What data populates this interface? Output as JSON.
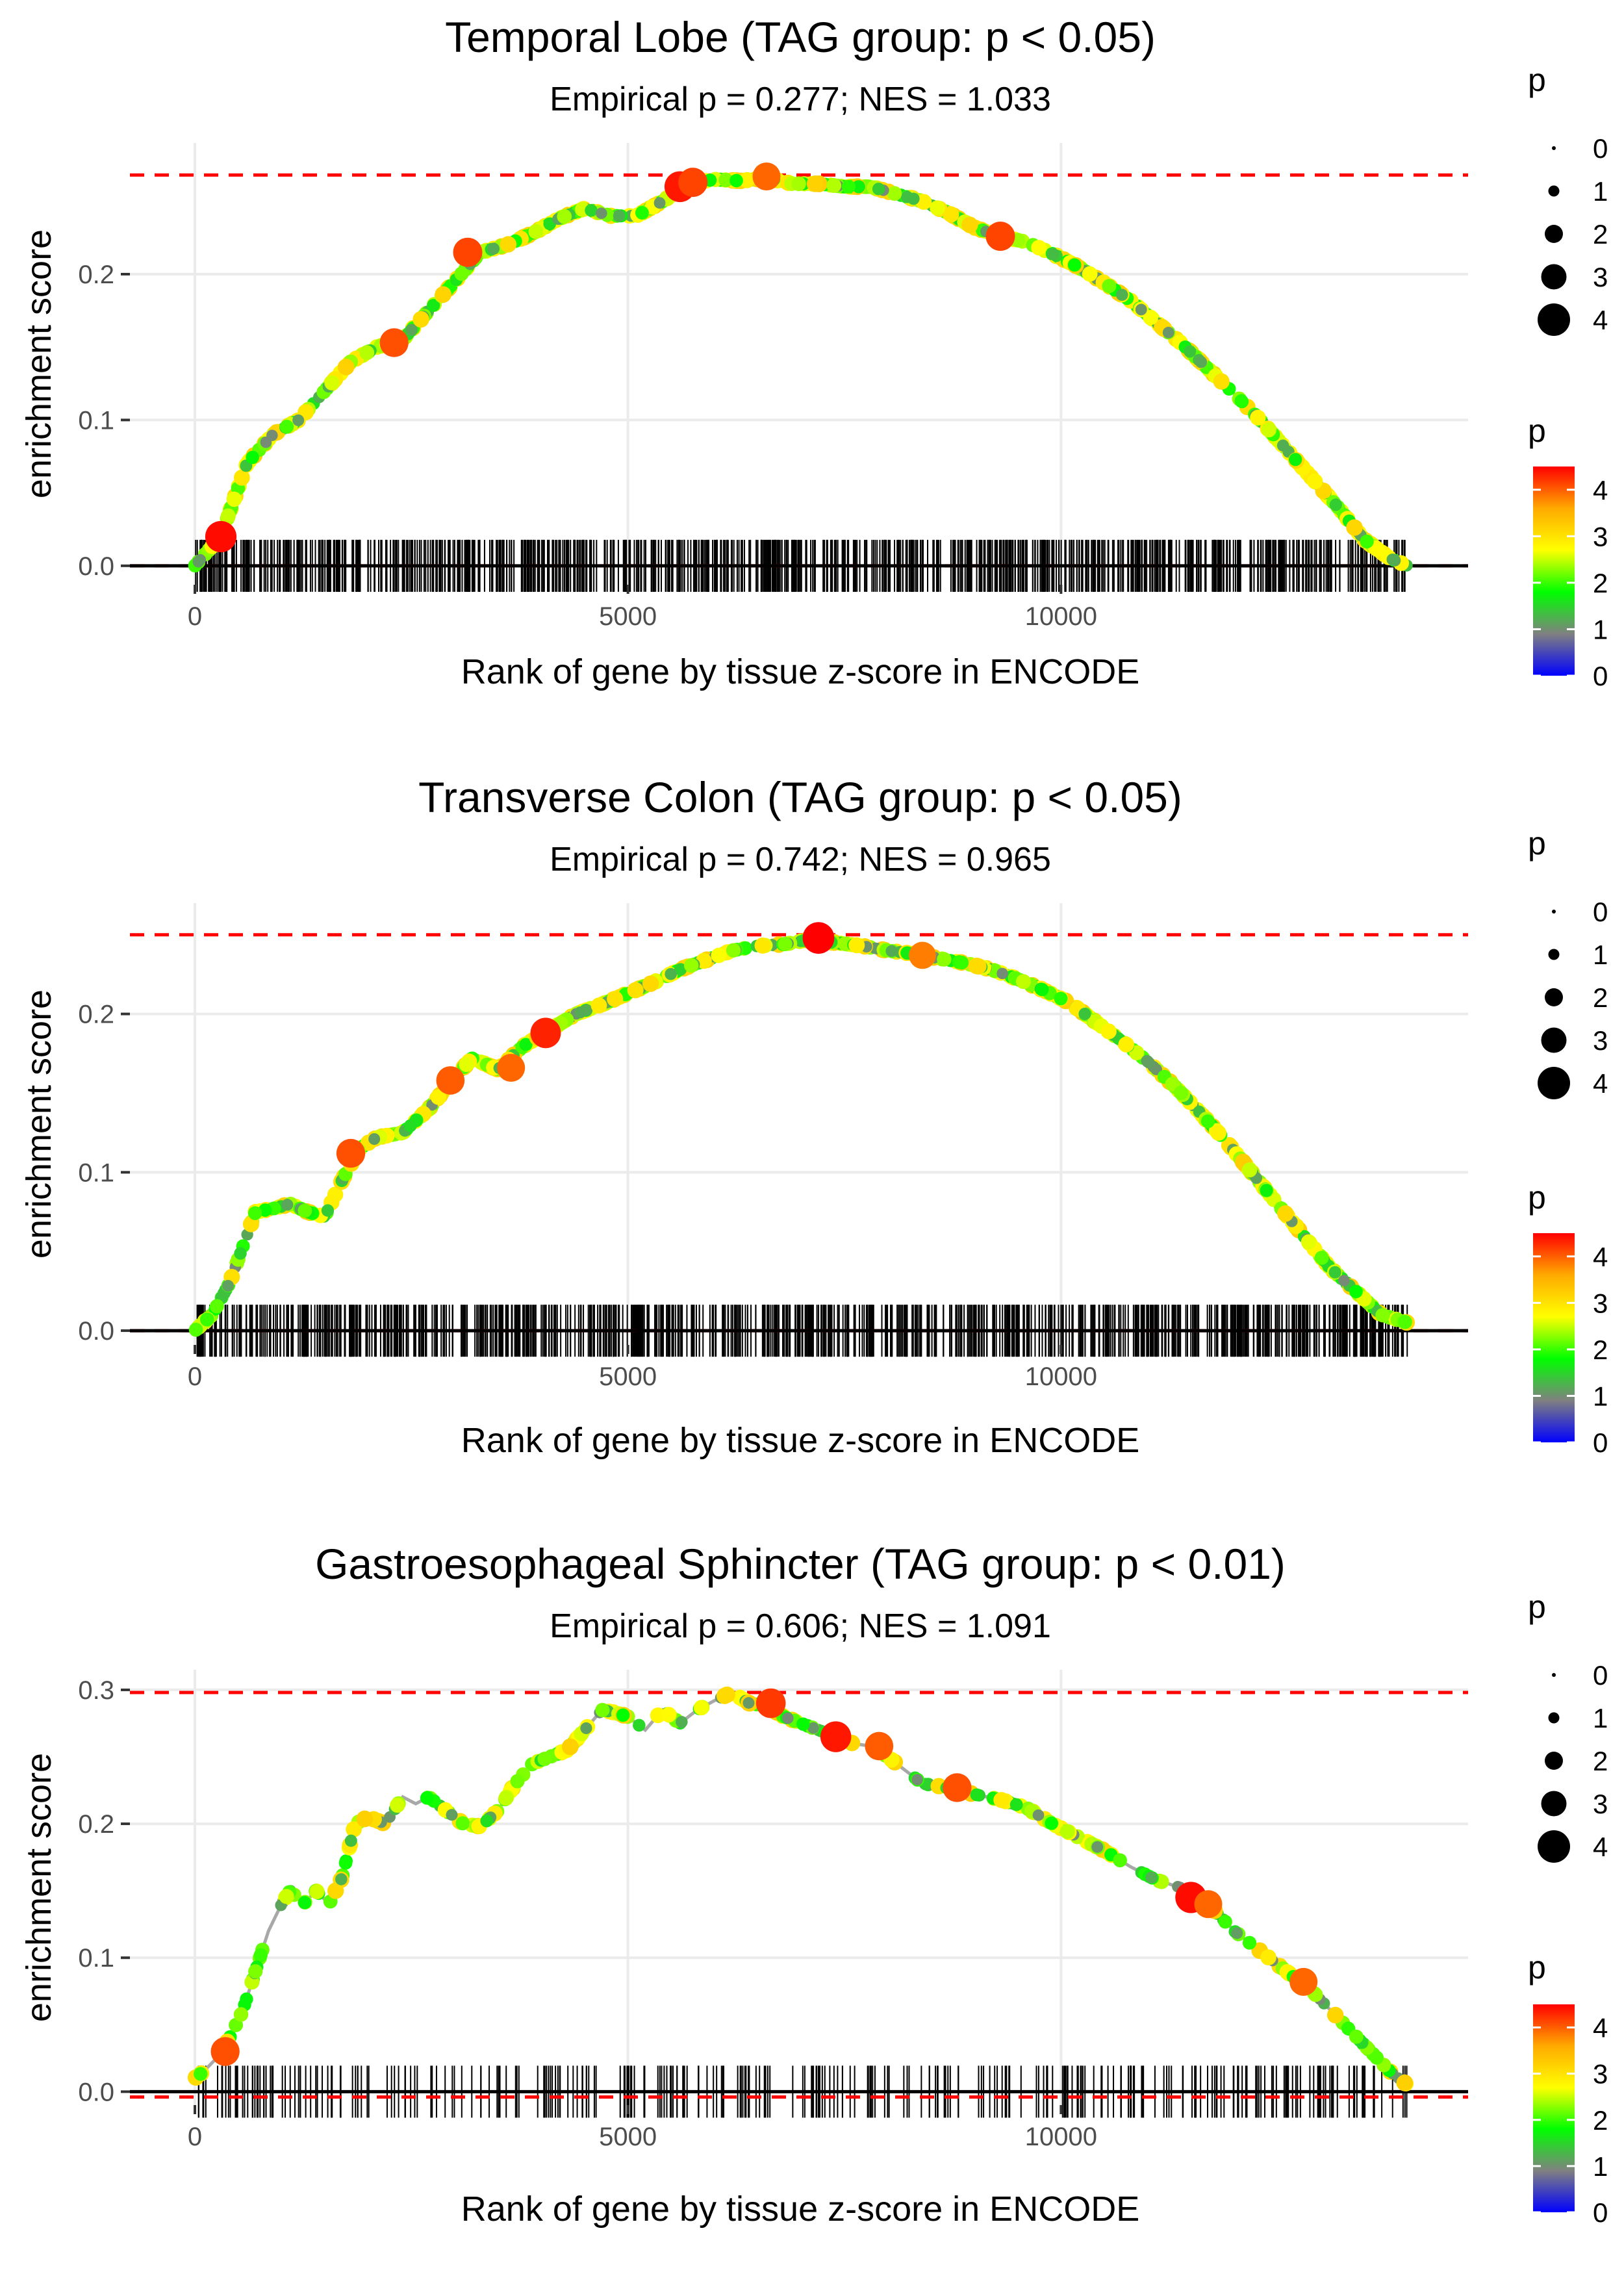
{
  "chart_data": [
    {
      "type": "line",
      "title": "Temporal Lobe (TAG group: p < 0.05)",
      "subtitle": "Empirical p = 0.277; NES = 1.033",
      "xlabel": "Rank of gene by tissue z-score in ENCODE",
      "ylabel": "enrichment score",
      "xlim": [
        -750,
        14700
      ],
      "ylim": [
        -0.013,
        0.29
      ],
      "xticks": [
        0,
        5000,
        10000
      ],
      "xtick_labels": [
        "0",
        "5000",
        "10000"
      ],
      "yticks": [
        0.0,
        0.1,
        0.2
      ],
      "ytick_labels": [
        "0.0",
        "0.1",
        "0.2"
      ],
      "max_es": 0.268,
      "min_es": 0,
      "series": [
        {
          "name": "running enrichment score",
          "x": [
            0,
            300,
            600,
            900,
            1200,
            1500,
            1800,
            2100,
            2400,
            2700,
            3000,
            3300,
            3600,
            3900,
            4200,
            4500,
            4800,
            5100,
            5400,
            5700,
            6000,
            6300,
            6600,
            6900,
            7200,
            7500,
            7800,
            8100,
            8400,
            8700,
            9000,
            9300,
            9600,
            9900,
            10200,
            10500,
            10800,
            11100,
            11400,
            11700,
            12000,
            12300,
            12600,
            12900,
            13200,
            13500,
            13800,
            14000
          ],
          "values": [
            0.0,
            0.02,
            0.07,
            0.09,
            0.1,
            0.12,
            0.14,
            0.15,
            0.155,
            0.175,
            0.195,
            0.215,
            0.22,
            0.228,
            0.238,
            0.245,
            0.24,
            0.24,
            0.25,
            0.262,
            0.265,
            0.264,
            0.266,
            0.262,
            0.262,
            0.26,
            0.26,
            0.255,
            0.25,
            0.242,
            0.232,
            0.226,
            0.222,
            0.214,
            0.205,
            0.194,
            0.182,
            0.167,
            0.152,
            0.135,
            0.118,
            0.1,
            0.08,
            0.06,
            0.04,
            0.018,
            0.005,
            0.0
          ]
        }
      ],
      "highlight_points": [
        {
          "x": 300,
          "y": 0.02,
          "p": 4.4
        },
        {
          "x": 2300,
          "y": 0.153,
          "p": 3.8
        },
        {
          "x": 3150,
          "y": 0.215,
          "p": 3.9
        },
        {
          "x": 5600,
          "y": 0.26,
          "p": 4.3
        },
        {
          "x": 5750,
          "y": 0.263,
          "p": 3.9
        },
        {
          "x": 6600,
          "y": 0.267,
          "p": 3.6
        },
        {
          "x": 9300,
          "y": 0.226,
          "p": 3.9
        }
      ],
      "legend_size": {
        "title": "p",
        "labels": [
          "0",
          "1",
          "2",
          "3",
          "4"
        ]
      },
      "legend_color": {
        "title": "p",
        "labels": [
          "4",
          "3",
          "2",
          "1",
          "0"
        ],
        "colors": [
          "#ff0000",
          "#ffaa00",
          "#ffff00",
          "#00ff00",
          "#808080",
          "#0000ff"
        ]
      },
      "rug_density": 1.0
    },
    {
      "type": "line",
      "title": "Transverse Colon (TAG group: p < 0.05)",
      "subtitle": "Empirical p = 0.742; NES = 0.965",
      "xlabel": "Rank of gene by tissue z-score in ENCODE",
      "ylabel": "enrichment score",
      "xlim": [
        -750,
        14700
      ],
      "ylim": [
        -0.009,
        0.27
      ],
      "xticks": [
        0,
        5000,
        10000
      ],
      "xtick_labels": [
        "0",
        "5000",
        "10000"
      ],
      "yticks": [
        0.0,
        0.1,
        0.2
      ],
      "ytick_labels": [
        "0.0",
        "0.1",
        "0.2"
      ],
      "max_es": 0.25,
      "min_es": 0,
      "series": [
        {
          "name": "running enrichment score",
          "x": [
            0,
            200,
            400,
            600,
            700,
            900,
            1100,
            1300,
            1500,
            1700,
            1900,
            2100,
            2400,
            2700,
            3000,
            3200,
            3500,
            3800,
            4100,
            4400,
            4700,
            5000,
            5300,
            5600,
            5900,
            6200,
            6500,
            6800,
            7100,
            7400,
            7700,
            8000,
            8300,
            8600,
            8900,
            9200,
            9500,
            9800,
            10100,
            10400,
            10700,
            11000,
            11300,
            11600,
            11900,
            12200,
            12500,
            12800,
            13100,
            13400,
            13700,
            14000
          ],
          "values": [
            0.0,
            0.01,
            0.03,
            0.06,
            0.075,
            0.077,
            0.08,
            0.075,
            0.072,
            0.095,
            0.115,
            0.122,
            0.125,
            0.14,
            0.16,
            0.172,
            0.165,
            0.18,
            0.19,
            0.2,
            0.206,
            0.213,
            0.22,
            0.228,
            0.234,
            0.24,
            0.243,
            0.244,
            0.247,
            0.245,
            0.243,
            0.24,
            0.238,
            0.235,
            0.232,
            0.228,
            0.222,
            0.215,
            0.207,
            0.195,
            0.183,
            0.17,
            0.155,
            0.138,
            0.12,
            0.1,
            0.08,
            0.06,
            0.04,
            0.025,
            0.01,
            0.005
          ]
        }
      ],
      "highlight_points": [
        {
          "x": 1800,
          "y": 0.112,
          "p": 3.8
        },
        {
          "x": 2950,
          "y": 0.158,
          "p": 3.7
        },
        {
          "x": 3650,
          "y": 0.166,
          "p": 3.6
        },
        {
          "x": 4050,
          "y": 0.188,
          "p": 4.2
        },
        {
          "x": 7200,
          "y": 0.248,
          "p": 4.5
        },
        {
          "x": 8400,
          "y": 0.237,
          "p": 3.4
        }
      ],
      "legend_size": {
        "title": "p",
        "labels": [
          "0",
          "1",
          "2",
          "3",
          "4"
        ]
      },
      "legend_color": {
        "title": "p",
        "labels": [
          "4",
          "3",
          "2",
          "1",
          "0"
        ],
        "colors": [
          "#ff0000",
          "#ffaa00",
          "#ffff00",
          "#00ff00",
          "#808080",
          "#0000ff"
        ]
      },
      "rug_density": 1.0
    },
    {
      "type": "line",
      "title": "Gastroesophageal Sphincter (TAG group: p < 0.01)",
      "subtitle": "Empirical p = 0.606; NES = 1.091",
      "xlabel": "Rank of gene by tissue z-score in ENCODE",
      "ylabel": "enrichment score",
      "xlim": [
        -750,
        14700
      ],
      "ylim": [
        -0.01,
        0.315
      ],
      "xticks": [
        0,
        5000,
        10000
      ],
      "xtick_labels": [
        "0",
        "5000",
        "10000"
      ],
      "yticks": [
        0.0,
        0.1,
        0.2,
        0.3
      ],
      "ytick_labels": [
        "0.0",
        "0.1",
        "0.2",
        "0.3"
      ],
      "max_es": 0.298,
      "min_es": -0.004,
      "series": [
        {
          "name": "running enrichment score",
          "x": [
            0,
            100,
            250,
            400,
            550,
            700,
            850,
            1000,
            1100,
            1250,
            1400,
            1550,
            1700,
            1850,
            2000,
            2200,
            2400,
            2550,
            2700,
            2900,
            3100,
            3300,
            3500,
            3700,
            3900,
            4100,
            4300,
            4500,
            4700,
            4850,
            5000,
            5200,
            5400,
            5600,
            5800,
            6000,
            6200,
            6400,
            6600,
            6800,
            7000,
            7200,
            7400,
            7600,
            7800,
            8000,
            8200,
            8400,
            8600,
            8800,
            9000,
            9300,
            9600,
            9900,
            10200,
            10500,
            10800,
            11100,
            11400,
            11700,
            12000,
            12300,
            12600,
            12900,
            13200,
            13500,
            13800,
            14000
          ],
          "values": [
            0.01,
            0.015,
            0.025,
            0.04,
            0.06,
            0.09,
            0.12,
            0.14,
            0.15,
            0.14,
            0.15,
            0.14,
            0.16,
            0.2,
            0.205,
            0.2,
            0.22,
            0.215,
            0.22,
            0.21,
            0.2,
            0.198,
            0.21,
            0.23,
            0.245,
            0.25,
            0.255,
            0.27,
            0.285,
            0.283,
            0.28,
            0.27,
            0.285,
            0.275,
            0.285,
            0.292,
            0.298,
            0.29,
            0.288,
            0.28,
            0.275,
            0.27,
            0.265,
            0.26,
            0.258,
            0.25,
            0.24,
            0.23,
            0.228,
            0.225,
            0.222,
            0.218,
            0.212,
            0.2,
            0.19,
            0.18,
            0.168,
            0.158,
            0.152,
            0.14,
            0.12,
            0.105,
            0.09,
            0.075,
            0.055,
            0.035,
            0.015,
            0.005
          ]
        }
      ],
      "highlight_points": [
        {
          "x": 350,
          "y": 0.03,
          "p": 3.8
        },
        {
          "x": 6650,
          "y": 0.29,
          "p": 4.0
        },
        {
          "x": 7400,
          "y": 0.265,
          "p": 4.3
        },
        {
          "x": 7900,
          "y": 0.258,
          "p": 3.7
        },
        {
          "x": 8800,
          "y": 0.227,
          "p": 3.8
        },
        {
          "x": 11500,
          "y": 0.145,
          "p": 4.4
        },
        {
          "x": 11700,
          "y": 0.14,
          "p": 3.6
        },
        {
          "x": 12800,
          "y": 0.082,
          "p": 3.6
        }
      ],
      "legend_size": {
        "title": "p",
        "labels": [
          "0",
          "1",
          "2",
          "3",
          "4"
        ]
      },
      "legend_color": {
        "title": "p",
        "labels": [
          "4",
          "3",
          "2",
          "1",
          "0"
        ],
        "colors": [
          "#ff0000",
          "#ffaa00",
          "#ffff00",
          "#00ff00",
          "#808080",
          "#0000ff"
        ]
      },
      "rug_density": 0.35
    }
  ]
}
